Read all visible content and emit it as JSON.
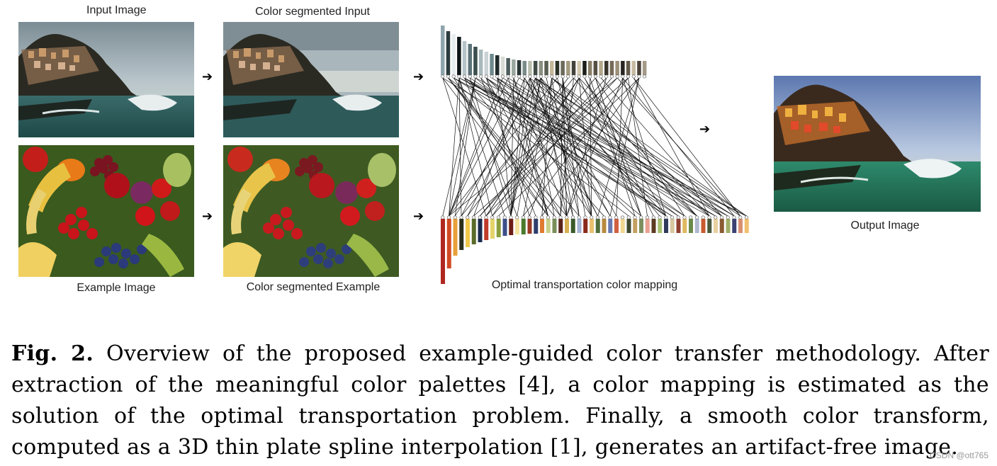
{
  "figure": {
    "labels": {
      "input": "Input Image",
      "seg_input": "Color segmented Input",
      "example": "Example Image",
      "seg_example": "Color segmented Example",
      "mapping": "Optimal transportation color mapping",
      "output": "Output Image"
    },
    "palette_top_colors": [
      "#8fa4ac",
      "#2d3c40",
      "#e7ecef",
      "#0d1416",
      "#b6c4ca",
      "#5c7378",
      "#3b4e4e",
      "#a8b8bc",
      "#c9d2d4",
      "#6f8a8e",
      "#1f2b2d",
      "#d7dcd4",
      "#4d5e5c",
      "#9aa7a0",
      "#2a3536",
      "#7a8c88",
      "#b9bfae",
      "#3f4a44",
      "#8b8f80",
      "#5a5e52",
      "#c4b89a",
      "#2e3228",
      "#6c6a5c",
      "#a39a80",
      "#43423a",
      "#d1c8b0",
      "#1d1e1a",
      "#8a7f68",
      "#565044",
      "#b3a78c",
      "#3a352c",
      "#776b58",
      "#9c8f78",
      "#282520",
      "#645a4a",
      "#c7bca2",
      "#4a4238",
      "#a59a86"
    ],
    "palette_top_heights": [
      70,
      62,
      58,
      54,
      48,
      44,
      40,
      36,
      33,
      30,
      28,
      26,
      24,
      22,
      21,
      20,
      20,
      20,
      20,
      20,
      20,
      20,
      20,
      20,
      20,
      20,
      20,
      20,
      20,
      20,
      20,
      20,
      20,
      20,
      20,
      20,
      20,
      20
    ],
    "palette_bottom_colors": [
      "#b0271f",
      "#d14a22",
      "#e8a03a",
      "#2b2f1a",
      "#f0c84a",
      "#5a6b2a",
      "#1c2a4e",
      "#c23a2a",
      "#e4d36a",
      "#8a9e3c",
      "#3c4f8a",
      "#6d1e14",
      "#f4e4a0",
      "#4a7a2c",
      "#9a3a24",
      "#2e3d6a",
      "#e07a30",
      "#c8d08a",
      "#7a8e58",
      "#5a2418",
      "#d8b050",
      "#3a5a2a",
      "#a4b4d4",
      "#8a2a1c",
      "#e8c070",
      "#4e6e3c",
      "#b88a40",
      "#6a7ab0",
      "#d06040",
      "#f0d890",
      "#3e4a2e",
      "#c4a060",
      "#7c9060",
      "#e8a090",
      "#5c3a20",
      "#a8c070",
      "#303a5a",
      "#d8c8a0",
      "#904030",
      "#e0b860",
      "#6a8a4a",
      "#b0b8d0",
      "#c85a30",
      "#4a5a3a",
      "#e8d0a0",
      "#8a5a30",
      "#a0b068",
      "#3a4070",
      "#d89070",
      "#f0c070"
    ],
    "palette_bottom_heights": [
      92,
      70,
      52,
      44,
      40,
      36,
      33,
      30,
      28,
      26,
      24,
      23,
      22,
      22,
      21,
      21,
      20,
      20,
      20,
      20,
      20,
      20,
      20,
      20,
      20,
      20,
      20,
      20,
      20,
      20,
      20,
      20,
      20,
      20,
      20,
      20,
      20,
      20,
      20,
      20,
      20,
      20,
      20,
      20,
      20,
      20,
      20,
      20,
      20,
      20
    ]
  },
  "caption": {
    "fig_label": "Fig. 2.",
    "text": " Overview of the proposed example-guided color transfer methodology. After extraction of the meaningful color palettes [4], a color mapping is estimated as the solution of the optimal transportation problem. Finally, a smooth color transform, computed as a 3D thin plate spline interpolation [1], generates an artifact-free image."
  },
  "watermark": "CSDN @ott765"
}
